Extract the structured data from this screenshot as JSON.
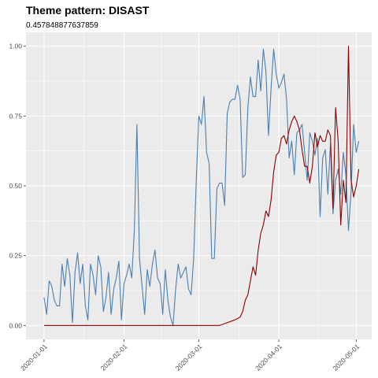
{
  "chart_data": {
    "type": "line",
    "title": "Theme pattern: DISAST",
    "subtitle": "0.457848877637859",
    "xlabel": "",
    "ylabel": "",
    "xlim": [
      "2019-12-25",
      "2020-05-07"
    ],
    "ylim": [
      -0.05,
      1.05
    ],
    "grid": true,
    "legend": "none",
    "x_ticks": [
      "2020-01-01",
      "2020-02-01",
      "2020-03-01",
      "2020-04-01",
      "2020-05-01"
    ],
    "y_ticks": [
      0.0,
      0.25,
      0.5,
      0.75,
      1.0
    ],
    "y_tick_labels": [
      "0.00",
      "0.25",
      "0.50",
      "0.75",
      "1.00"
    ],
    "series": [
      {
        "color": "#4a7fb0",
        "points": [
          [
            "2020-01-01",
            0.1
          ],
          [
            "2020-01-02",
            0.04
          ],
          [
            "2020-01-03",
            0.16
          ],
          [
            "2020-01-04",
            0.14
          ],
          [
            "2020-01-05",
            0.09
          ],
          [
            "2020-01-06",
            0.07
          ],
          [
            "2020-01-07",
            0.07
          ],
          [
            "2020-01-08",
            0.22
          ],
          [
            "2020-01-09",
            0.14
          ],
          [
            "2020-01-10",
            0.24
          ],
          [
            "2020-01-11",
            0.18
          ],
          [
            "2020-01-12",
            0.01
          ],
          [
            "2020-01-13",
            0.19
          ],
          [
            "2020-01-14",
            0.26
          ],
          [
            "2020-01-15",
            0.15
          ],
          [
            "2020-01-16",
            0.22
          ],
          [
            "2020-01-17",
            0.07
          ],
          [
            "2020-01-18",
            0.02
          ],
          [
            "2020-01-19",
            0.22
          ],
          [
            "2020-01-20",
            0.18
          ],
          [
            "2020-01-21",
            0.11
          ],
          [
            "2020-01-22",
            0.25
          ],
          [
            "2020-01-23",
            0.21
          ],
          [
            "2020-01-24",
            0.05
          ],
          [
            "2020-01-25",
            0.1
          ],
          [
            "2020-01-26",
            0.19
          ],
          [
            "2020-01-27",
            0.04
          ],
          [
            "2020-01-28",
            0.13
          ],
          [
            "2020-01-29",
            0.17
          ],
          [
            "2020-01-30",
            0.23
          ],
          [
            "2020-01-31",
            0.02
          ],
          [
            "2020-02-01",
            0.15
          ],
          [
            "2020-02-02",
            0.18
          ],
          [
            "2020-02-03",
            0.22
          ],
          [
            "2020-02-04",
            0.17
          ],
          [
            "2020-02-05",
            0.34
          ],
          [
            "2020-02-06",
            0.72
          ],
          [
            "2020-02-07",
            0.24
          ],
          [
            "2020-02-08",
            0.14
          ],
          [
            "2020-02-09",
            0.04
          ],
          [
            "2020-02-10",
            0.2
          ],
          [
            "2020-02-11",
            0.14
          ],
          [
            "2020-02-12",
            0.22
          ],
          [
            "2020-02-13",
            0.27
          ],
          [
            "2020-02-14",
            0.17
          ],
          [
            "2020-02-15",
            0.15
          ],
          [
            "2020-02-16",
            0.04
          ],
          [
            "2020-02-17",
            0.2
          ],
          [
            "2020-02-18",
            0.09
          ],
          [
            "2020-02-19",
            0.03
          ],
          [
            "2020-02-20",
            0.0
          ],
          [
            "2020-02-21",
            0.13
          ],
          [
            "2020-02-22",
            0.22
          ],
          [
            "2020-02-23",
            0.17
          ],
          [
            "2020-02-24",
            0.19
          ],
          [
            "2020-02-25",
            0.21
          ],
          [
            "2020-02-26",
            0.13
          ],
          [
            "2020-02-27",
            0.11
          ],
          [
            "2020-02-28",
            0.24
          ],
          [
            "2020-02-29",
            0.52
          ],
          [
            "2020-03-01",
            0.75
          ],
          [
            "2020-03-02",
            0.72
          ],
          [
            "2020-03-03",
            0.82
          ],
          [
            "2020-03-04",
            0.62
          ],
          [
            "2020-03-05",
            0.58
          ],
          [
            "2020-03-06",
            0.24
          ],
          [
            "2020-03-07",
            0.24
          ],
          [
            "2020-03-08",
            0.49
          ],
          [
            "2020-03-09",
            0.51
          ],
          [
            "2020-03-10",
            0.51
          ],
          [
            "2020-03-11",
            0.43
          ],
          [
            "2020-03-12",
            0.76
          ],
          [
            "2020-03-13",
            0.8
          ],
          [
            "2020-03-14",
            0.81
          ],
          [
            "2020-03-15",
            0.81
          ],
          [
            "2020-03-16",
            0.86
          ],
          [
            "2020-03-17",
            0.81
          ],
          [
            "2020-03-18",
            0.53
          ],
          [
            "2020-03-19",
            0.54
          ],
          [
            "2020-03-20",
            0.78
          ],
          [
            "2020-03-21",
            0.89
          ],
          [
            "2020-03-22",
            0.82
          ],
          [
            "2020-03-23",
            0.82
          ],
          [
            "2020-03-24",
            0.95
          ],
          [
            "2020-03-25",
            0.84
          ],
          [
            "2020-03-26",
            0.99
          ],
          [
            "2020-03-27",
            0.91
          ],
          [
            "2020-03-28",
            0.68
          ],
          [
            "2020-03-29",
            0.85
          ],
          [
            "2020-03-30",
            0.99
          ],
          [
            "2020-03-31",
            0.9
          ],
          [
            "2020-04-01",
            0.85
          ],
          [
            "2020-04-02",
            0.87
          ],
          [
            "2020-04-03",
            0.9
          ],
          [
            "2020-04-04",
            0.81
          ],
          [
            "2020-04-05",
            0.6
          ],
          [
            "2020-04-06",
            0.66
          ],
          [
            "2020-04-07",
            0.54
          ],
          [
            "2020-04-08",
            0.69
          ],
          [
            "2020-04-09",
            0.7
          ],
          [
            "2020-04-10",
            0.72
          ],
          [
            "2020-04-11",
            0.62
          ],
          [
            "2020-04-12",
            0.52
          ],
          [
            "2020-04-13",
            0.69
          ],
          [
            "2020-04-14",
            0.66
          ],
          [
            "2020-04-15",
            0.61
          ],
          [
            "2020-04-16",
            0.67
          ],
          [
            "2020-04-17",
            0.39
          ],
          [
            "2020-04-18",
            0.6
          ],
          [
            "2020-04-19",
            0.63
          ],
          [
            "2020-04-20",
            0.47
          ],
          [
            "2020-04-21",
            0.65
          ],
          [
            "2020-04-22",
            0.4
          ],
          [
            "2020-04-23",
            0.52
          ],
          [
            "2020-04-24",
            0.56
          ],
          [
            "2020-04-25",
            0.47
          ],
          [
            "2020-04-26",
            0.62
          ],
          [
            "2020-04-27",
            0.54
          ],
          [
            "2020-04-28",
            0.34
          ],
          [
            "2020-04-29",
            0.48
          ],
          [
            "2020-04-30",
            0.72
          ],
          [
            "2020-05-01",
            0.62
          ],
          [
            "2020-05-02",
            0.66
          ]
        ]
      },
      {
        "color": "#8b0000",
        "points": [
          [
            "2020-01-01",
            0.0
          ],
          [
            "2020-03-09",
            0.0
          ],
          [
            "2020-03-12",
            0.01
          ],
          [
            "2020-03-15",
            0.02
          ],
          [
            "2020-03-17",
            0.03
          ],
          [
            "2020-03-18",
            0.05
          ],
          [
            "2020-03-19",
            0.09
          ],
          [
            "2020-03-20",
            0.11
          ],
          [
            "2020-03-21",
            0.16
          ],
          [
            "2020-03-22",
            0.21
          ],
          [
            "2020-03-23",
            0.18
          ],
          [
            "2020-03-24",
            0.27
          ],
          [
            "2020-03-25",
            0.33
          ],
          [
            "2020-03-26",
            0.36
          ],
          [
            "2020-03-27",
            0.41
          ],
          [
            "2020-03-28",
            0.39
          ],
          [
            "2020-03-29",
            0.45
          ],
          [
            "2020-03-30",
            0.55
          ],
          [
            "2020-03-31",
            0.61
          ],
          [
            "2020-04-01",
            0.62
          ],
          [
            "2020-04-02",
            0.67
          ],
          [
            "2020-04-03",
            0.68
          ],
          [
            "2020-04-04",
            0.65
          ],
          [
            "2020-04-05",
            0.7
          ],
          [
            "2020-04-06",
            0.73
          ],
          [
            "2020-04-07",
            0.75
          ],
          [
            "2020-04-08",
            0.73
          ],
          [
            "2020-04-09",
            0.7
          ],
          [
            "2020-04-10",
            0.63
          ],
          [
            "2020-04-11",
            0.57
          ],
          [
            "2020-04-12",
            0.57
          ],
          [
            "2020-04-13",
            0.51
          ],
          [
            "2020-04-14",
            0.57
          ],
          [
            "2020-04-15",
            0.69
          ],
          [
            "2020-04-16",
            0.64
          ],
          [
            "2020-04-17",
            0.68
          ],
          [
            "2020-04-18",
            0.66
          ],
          [
            "2020-04-19",
            0.66
          ],
          [
            "2020-04-20",
            0.7
          ],
          [
            "2020-04-21",
            0.68
          ],
          [
            "2020-04-22",
            0.42
          ],
          [
            "2020-04-23",
            0.78
          ],
          [
            "2020-04-24",
            0.66
          ],
          [
            "2020-04-25",
            0.36
          ],
          [
            "2020-04-26",
            0.52
          ],
          [
            "2020-04-27",
            0.44
          ],
          [
            "2020-04-28",
            1.0
          ],
          [
            "2020-04-29",
            0.52
          ],
          [
            "2020-04-30",
            0.46
          ],
          [
            "2020-05-01",
            0.5
          ],
          [
            "2020-05-02",
            0.56
          ]
        ]
      }
    ]
  }
}
